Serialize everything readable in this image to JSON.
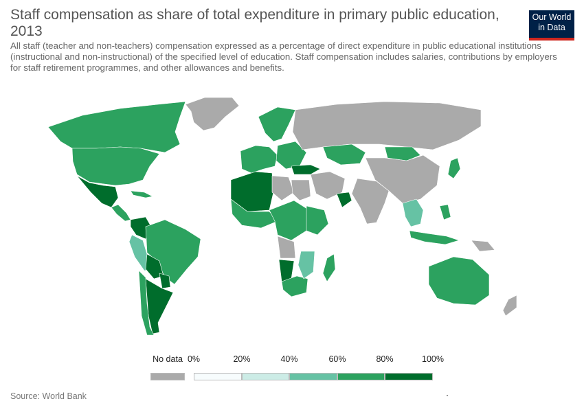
{
  "header": {
    "title": "Staff compensation as share of total expenditure in primary public education, 2013",
    "subtitle": "All staff (teacher and non-teachers) compensation expressed as a percentage of direct expenditure in public educational institutions (instructional and non-instructional) of the specified level of education. Staff compensation includes salaries, contributions by employers for staff retirement programmes, and other allowances and benefits."
  },
  "logo": {
    "line1": "Our World",
    "line2": "in Data",
    "background": "#002147",
    "accent": "#ce261e"
  },
  "legend": {
    "no_data_label": "No data",
    "no_data_color": "#aaaaaa",
    "tick_labels": [
      "0%",
      "20%",
      "40%",
      "60%",
      "80%",
      "100%"
    ],
    "bins": [
      {
        "range": "0%–20%",
        "color": "#f7fcfd"
      },
      {
        "range": "20%–40%",
        "color": "#ccece6"
      },
      {
        "range": "40%–60%",
        "color": "#66c2a4"
      },
      {
        "range": "60%–80%",
        "color": "#2ca25f"
      },
      {
        "range": "80%–100%",
        "color": "#006d2c"
      }
    ]
  },
  "source": "Source: World Bank",
  "map": {
    "regions": [
      {
        "name": "Canada",
        "color": "#2ca25f"
      },
      {
        "name": "United States",
        "color": "#2ca25f"
      },
      {
        "name": "Greenland",
        "color": "#aaaaaa"
      },
      {
        "name": "Mexico",
        "color": "#006d2c"
      },
      {
        "name": "Central America",
        "color": "#2ca25f"
      },
      {
        "name": "Caribbean",
        "color": "#2ca25f"
      },
      {
        "name": "Colombia",
        "color": "#006d2c"
      },
      {
        "name": "Peru",
        "color": "#66c2a4"
      },
      {
        "name": "Brazil",
        "color": "#2ca25f"
      },
      {
        "name": "Bolivia",
        "color": "#006d2c"
      },
      {
        "name": "Paraguay",
        "color": "#006d2c"
      },
      {
        "name": "Argentina",
        "color": "#006d2c"
      },
      {
        "name": "Chile",
        "color": "#2ca25f"
      },
      {
        "name": "Scandinavia",
        "color": "#2ca25f"
      },
      {
        "name": "Western Europe",
        "color": "#2ca25f"
      },
      {
        "name": "Eastern Europe",
        "color": "#2ca25f"
      },
      {
        "name": "Russia",
        "color": "#aaaaaa"
      },
      {
        "name": "Turkey",
        "color": "#006d2c"
      },
      {
        "name": "Kazakhstan",
        "color": "#2ca25f"
      },
      {
        "name": "Mongolia",
        "color": "#2ca25f"
      },
      {
        "name": "China",
        "color": "#aaaaaa"
      },
      {
        "name": "Japan",
        "color": "#2ca25f"
      },
      {
        "name": "Middle East",
        "color": "#aaaaaa"
      },
      {
        "name": "Oman",
        "color": "#006d2c"
      },
      {
        "name": "India",
        "color": "#aaaaaa"
      },
      {
        "name": "Southeast Asia",
        "color": "#66c2a4"
      },
      {
        "name": "Indonesia",
        "color": "#2ca25f"
      },
      {
        "name": "Philippines",
        "color": "#2ca25f"
      },
      {
        "name": "North Africa",
        "color": "#006d2c"
      },
      {
        "name": "Libya",
        "color": "#aaaaaa"
      },
      {
        "name": "Egypt",
        "color": "#aaaaaa"
      },
      {
        "name": "West Africa",
        "color": "#2ca25f"
      },
      {
        "name": "Central Africa",
        "color": "#2ca25f"
      },
      {
        "name": "East Africa",
        "color": "#2ca25f"
      },
      {
        "name": "Angola",
        "color": "#aaaaaa"
      },
      {
        "name": "Namibia",
        "color": "#006d2c"
      },
      {
        "name": "South Africa",
        "color": "#2ca25f"
      },
      {
        "name": "Mozambique",
        "color": "#66c2a4"
      },
      {
        "name": "Madagascar",
        "color": "#2ca25f"
      },
      {
        "name": "Australia",
        "color": "#2ca25f"
      },
      {
        "name": "New Zealand",
        "color": "#aaaaaa"
      },
      {
        "name": "Papua New Guinea",
        "color": "#aaaaaa"
      }
    ]
  }
}
